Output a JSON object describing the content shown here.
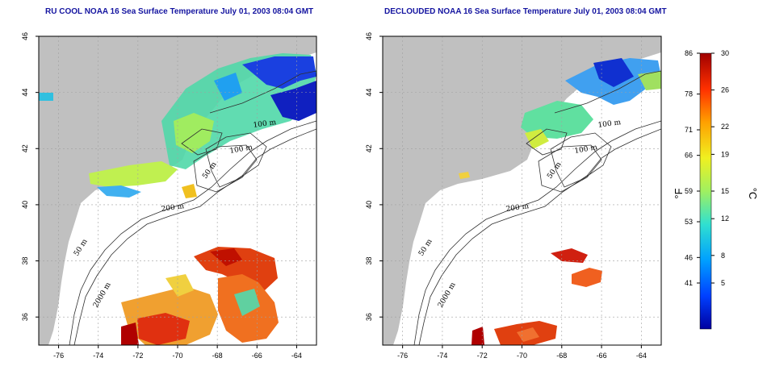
{
  "panels": [
    {
      "id": "left",
      "title": "RU COOL NOAA 16 Sea Surface Temperature July 01, 2003 08:04 GMT",
      "contour_labels": [
        "100 m",
        "100 m",
        "50 m",
        "200 m",
        "50 m",
        "2000 m"
      ]
    },
    {
      "id": "right",
      "title": "DECLOUDED NOAA 16 Sea Surface Temperature July 01, 2003 08:04 GMT",
      "contour_labels": [
        "100 m",
        "100 m",
        "50 m",
        "200 m",
        "50 m",
        "2000 m"
      ]
    }
  ],
  "axes": {
    "lon_range": [
      -77,
      -63
    ],
    "lat_range": [
      35,
      46
    ],
    "lon_ticks": [
      "-76",
      "-74",
      "-72",
      "-70",
      "-68",
      "-66",
      "-64"
    ],
    "lat_ticks": [
      "46",
      "44",
      "42",
      "40",
      "38",
      "36"
    ]
  },
  "colorbar": {
    "fahrenheit_ticks": [
      "86",
      "78",
      "71",
      "66",
      "59",
      "53",
      "46",
      "41"
    ],
    "celsius_ticks": [
      "30",
      "26",
      "22",
      "19",
      "15",
      "12",
      "8",
      "5"
    ],
    "fahrenheit_unit": "°F",
    "celsius_unit": "°C",
    "colors": [
      "#0000a0",
      "#0040ff",
      "#00a0ff",
      "#30e0d0",
      "#a0f060",
      "#f0f020",
      "#ffa000",
      "#ff3000",
      "#a00000"
    ]
  },
  "colors": {
    "land": "#c0c0c0",
    "ocean": "#ffffff",
    "grid": "#a0a0a0",
    "title": "#1414a0"
  }
}
